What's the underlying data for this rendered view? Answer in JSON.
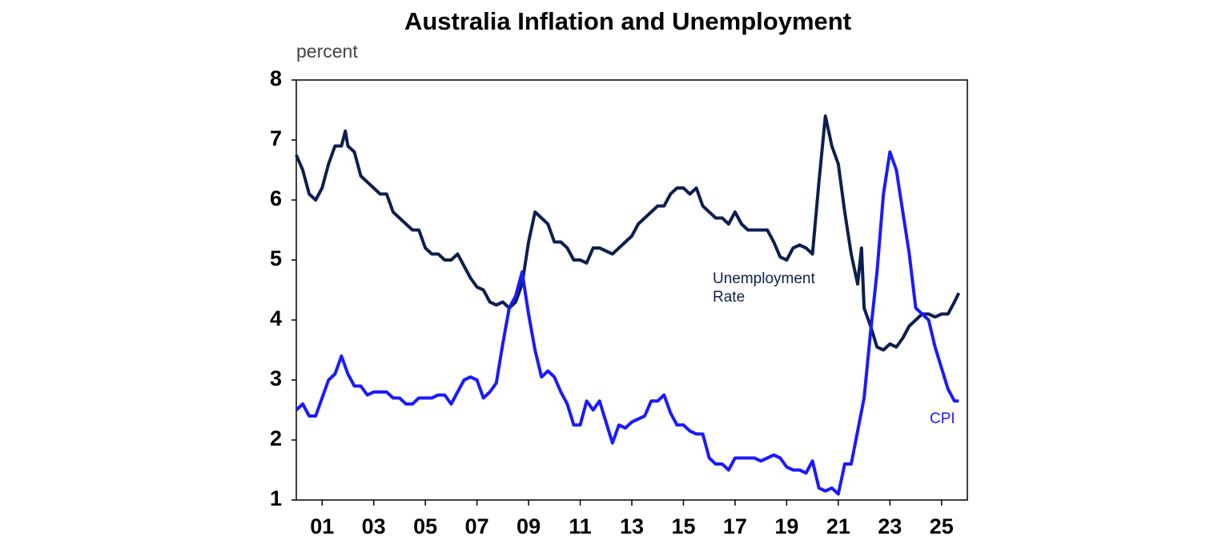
{
  "chart_data": {
    "type": "line",
    "title": "Australia Inflation and Unemployment",
    "y_label": "percent",
    "xlim": [
      2000,
      2026
    ],
    "ylim": [
      1,
      8
    ],
    "yticks": [
      1,
      2,
      3,
      4,
      5,
      6,
      7,
      8
    ],
    "xticks": [
      {
        "value": 2001,
        "label": "01"
      },
      {
        "value": 2003,
        "label": "03"
      },
      {
        "value": 2005,
        "label": "05"
      },
      {
        "value": 2007,
        "label": "07"
      },
      {
        "value": 2009,
        "label": "09"
      },
      {
        "value": 2011,
        "label": "11"
      },
      {
        "value": 2013,
        "label": "13"
      },
      {
        "value": 2015,
        "label": "15"
      },
      {
        "value": 2017,
        "label": "17"
      },
      {
        "value": 2019,
        "label": "19"
      },
      {
        "value": 2021,
        "label": "21"
      },
      {
        "value": 2023,
        "label": "23"
      },
      {
        "value": 2025,
        "label": "25"
      }
    ],
    "series": [
      {
        "name": "Unemployment Rate",
        "color": "#0d1f4f",
        "x": [
          2000,
          2000.25,
          2000.5,
          2000.75,
          2001,
          2001.25,
          2001.5,
          2001.75,
          2001.9,
          2002,
          2002.25,
          2002.5,
          2002.75,
          2003,
          2003.25,
          2003.5,
          2003.75,
          2004,
          2004.25,
          2004.5,
          2004.75,
          2005,
          2005.25,
          2005.5,
          2005.75,
          2006,
          2006.25,
          2006.5,
          2006.75,
          2007,
          2007.25,
          2007.5,
          2007.75,
          2008,
          2008.25,
          2008.5,
          2008.75,
          2009,
          2009.25,
          2009.5,
          2009.75,
          2010,
          2010.25,
          2010.5,
          2010.75,
          2011,
          2011.25,
          2011.5,
          2011.75,
          2012,
          2012.25,
          2012.5,
          2012.75,
          2013,
          2013.25,
          2013.5,
          2013.75,
          2014,
          2014.25,
          2014.5,
          2014.75,
          2015,
          2015.25,
          2015.5,
          2015.75,
          2016,
          2016.25,
          2016.5,
          2016.75,
          2017,
          2017.25,
          2017.5,
          2017.75,
          2018,
          2018.25,
          2018.5,
          2018.75,
          2019,
          2019.25,
          2019.5,
          2019.75,
          2020,
          2020.25,
          2020.5,
          2020.75,
          2021,
          2021.25,
          2021.5,
          2021.75,
          2021.9,
          2022,
          2022.25,
          2022.5,
          2022.75,
          2023,
          2023.25,
          2023.5,
          2023.75,
          2024,
          2024.25,
          2024.5,
          2024.75,
          2025,
          2025.25,
          2025.5,
          2025.67
        ],
        "values": [
          6.75,
          6.5,
          6.1,
          6.0,
          6.2,
          6.6,
          6.9,
          6.9,
          7.15,
          6.9,
          6.8,
          6.4,
          6.3,
          6.2,
          6.1,
          6.1,
          5.8,
          5.7,
          5.6,
          5.5,
          5.5,
          5.2,
          5.1,
          5.1,
          5.0,
          5.0,
          5.1,
          4.9,
          4.7,
          4.55,
          4.5,
          4.3,
          4.25,
          4.3,
          4.2,
          4.3,
          4.6,
          5.3,
          5.8,
          5.7,
          5.6,
          5.3,
          5.3,
          5.2,
          5.0,
          5.0,
          4.95,
          5.2,
          5.2,
          5.15,
          5.1,
          5.2,
          5.3,
          5.4,
          5.6,
          5.7,
          5.8,
          5.9,
          5.9,
          6.1,
          6.2,
          6.2,
          6.1,
          6.2,
          5.9,
          5.8,
          5.7,
          5.7,
          5.6,
          5.8,
          5.6,
          5.5,
          5.5,
          5.5,
          5.5,
          5.3,
          5.05,
          5.0,
          5.2,
          5.25,
          5.2,
          5.1,
          6.3,
          7.4,
          6.9,
          6.6,
          5.8,
          5.1,
          4.6,
          5.2,
          4.2,
          3.9,
          3.55,
          3.5,
          3.6,
          3.55,
          3.7,
          3.9,
          4.0,
          4.1,
          4.1,
          4.05,
          4.1,
          4.1,
          4.3,
          4.45
        ]
      },
      {
        "name": "CPI",
        "color": "#1a1aff",
        "x": [
          2000,
          2000.25,
          2000.5,
          2000.75,
          2001,
          2001.25,
          2001.5,
          2001.75,
          2002,
          2002.25,
          2002.5,
          2002.75,
          2003,
          2003.25,
          2003.5,
          2003.75,
          2004,
          2004.25,
          2004.5,
          2004.75,
          2005,
          2005.25,
          2005.5,
          2005.75,
          2006,
          2006.25,
          2006.5,
          2006.75,
          2007,
          2007.25,
          2007.5,
          2007.75,
          2008,
          2008.25,
          2008.5,
          2008.75,
          2009,
          2009.25,
          2009.5,
          2009.75,
          2010,
          2010.25,
          2010.5,
          2010.75,
          2011,
          2011.25,
          2011.5,
          2011.75,
          2012,
          2012.25,
          2012.5,
          2012.75,
          2013,
          2013.25,
          2013.5,
          2013.75,
          2014,
          2014.25,
          2014.5,
          2014.75,
          2015,
          2015.25,
          2015.5,
          2015.75,
          2016,
          2016.25,
          2016.5,
          2016.75,
          2017,
          2017.25,
          2017.5,
          2017.75,
          2018,
          2018.25,
          2018.5,
          2018.75,
          2019,
          2019.25,
          2019.5,
          2019.75,
          2020,
          2020.25,
          2020.5,
          2020.75,
          2021,
          2021.25,
          2021.5,
          2021.75,
          2022,
          2022.25,
          2022.5,
          2022.75,
          2023,
          2023.25,
          2023.5,
          2023.75,
          2024,
          2024.25,
          2024.5,
          2024.75,
          2025,
          2025.25,
          2025.5,
          2025.67
        ],
        "values": [
          2.5,
          2.6,
          2.4,
          2.4,
          2.7,
          3.0,
          3.1,
          3.4,
          3.1,
          2.9,
          2.9,
          2.75,
          2.8,
          2.8,
          2.8,
          2.7,
          2.7,
          2.6,
          2.6,
          2.7,
          2.7,
          2.7,
          2.75,
          2.75,
          2.6,
          2.8,
          3.0,
          3.05,
          3.0,
          2.7,
          2.8,
          2.95,
          3.6,
          4.2,
          4.4,
          4.8,
          4.1,
          3.5,
          3.05,
          3.15,
          3.05,
          2.8,
          2.6,
          2.25,
          2.25,
          2.65,
          2.5,
          2.65,
          2.3,
          1.95,
          2.25,
          2.2,
          2.3,
          2.35,
          2.4,
          2.65,
          2.65,
          2.75,
          2.45,
          2.25,
          2.25,
          2.15,
          2.1,
          2.1,
          1.7,
          1.6,
          1.6,
          1.5,
          1.7,
          1.7,
          1.7,
          1.7,
          1.65,
          1.7,
          1.75,
          1.7,
          1.55,
          1.5,
          1.5,
          1.45,
          1.65,
          1.2,
          1.15,
          1.2,
          1.1,
          1.6,
          1.6,
          2.15,
          2.7,
          3.8,
          4.8,
          6.1,
          6.8,
          6.5,
          5.8,
          5.1,
          4.2,
          4.1,
          4.0,
          3.55,
          3.2,
          2.85,
          2.65,
          2.65
        ]
      }
    ]
  }
}
